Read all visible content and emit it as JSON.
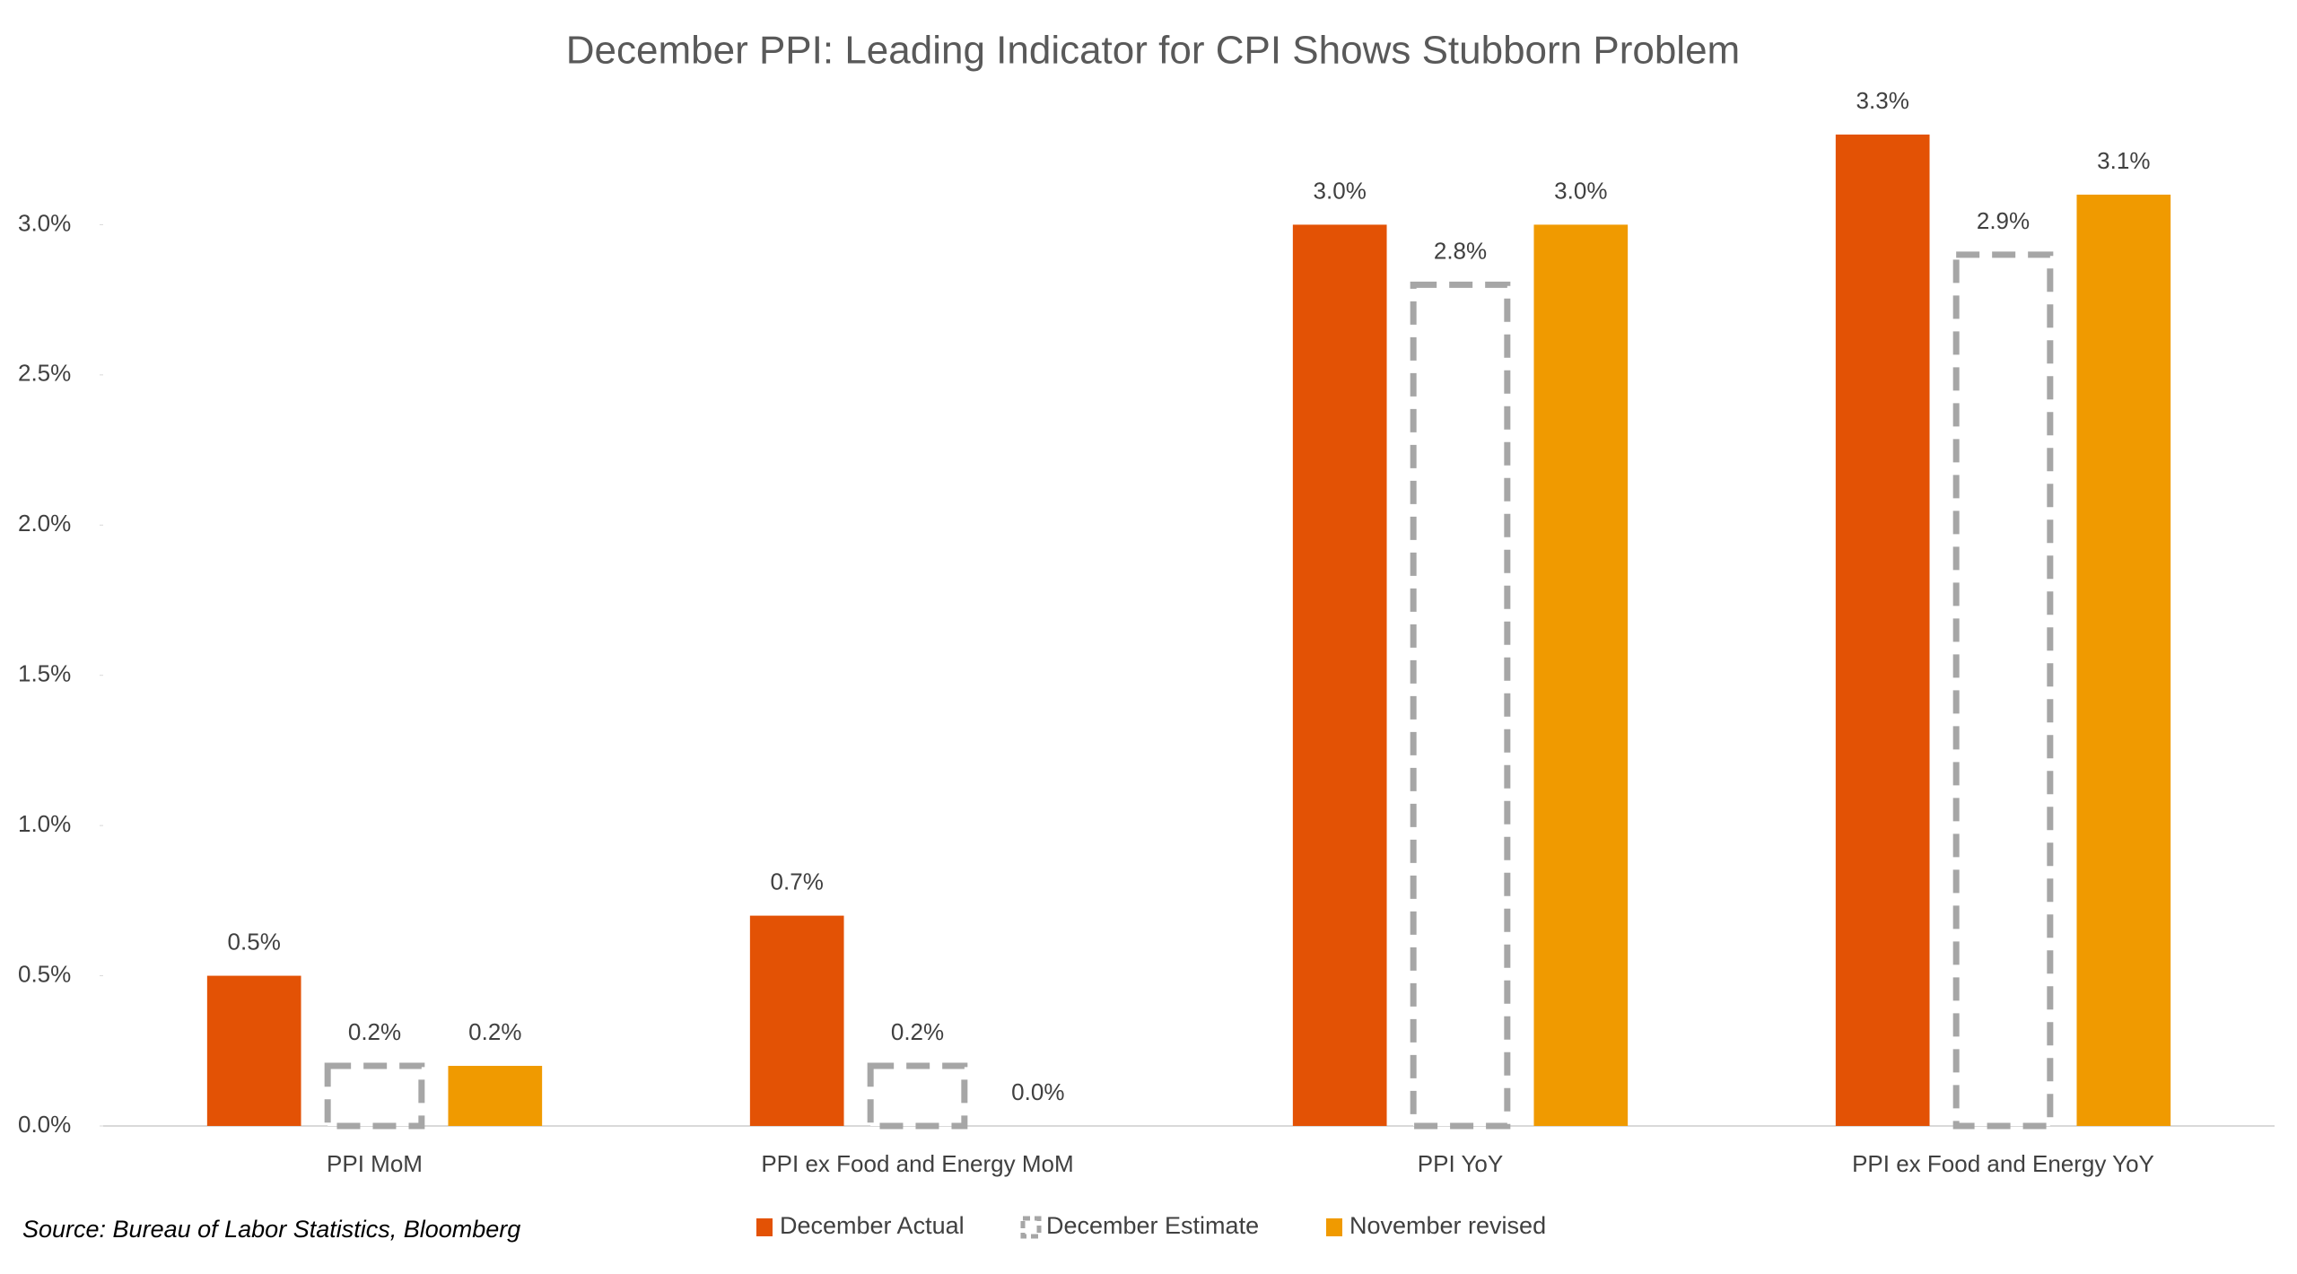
{
  "chart_data": {
    "type": "bar",
    "title": "December PPI: Leading Indicator for CPI Shows Stubborn Problem",
    "source": "Source: Bureau of Labor Statistics, Bloomberg",
    "categories": [
      "PPI MoM",
      "PPI ex Food and Energy MoM",
      "PPI YoY",
      "PPI ex Food and Energy YoY"
    ],
    "series": [
      {
        "name": "December Actual",
        "color": "#e35205",
        "style": "solid",
        "values": [
          0.5,
          0.7,
          3.0,
          3.3
        ],
        "value_labels": [
          "0.5%",
          "0.7%",
          "3.0%",
          "3.3%"
        ]
      },
      {
        "name": "December Estimate",
        "color": "#a6a6a6",
        "style": "dashed",
        "values": [
          0.2,
          0.2,
          2.8,
          2.9
        ],
        "value_labels": [
          "0.2%",
          "0.2%",
          "2.8%",
          "2.9%"
        ]
      },
      {
        "name": "November revised",
        "color": "#f09a00",
        "style": "solid",
        "values": [
          0.2,
          0.0,
          3.0,
          3.1
        ],
        "value_labels": [
          "0.2%",
          "0.0%",
          "3.0%",
          "3.1%"
        ]
      }
    ],
    "ylim": [
      0,
      3.5
    ],
    "yticks": [
      {
        "value": 0,
        "label": "0.0%"
      },
      {
        "value": 0.5,
        "label": "0.5%"
      },
      {
        "value": 1,
        "label": "1.0%"
      },
      {
        "value": 1.5,
        "label": "1.5%"
      },
      {
        "value": 2,
        "label": "2.0%"
      },
      {
        "value": 2.5,
        "label": "2.5%"
      },
      {
        "value": 3,
        "label": "3.0%"
      }
    ],
    "grid": false,
    "legend": "bottom"
  }
}
